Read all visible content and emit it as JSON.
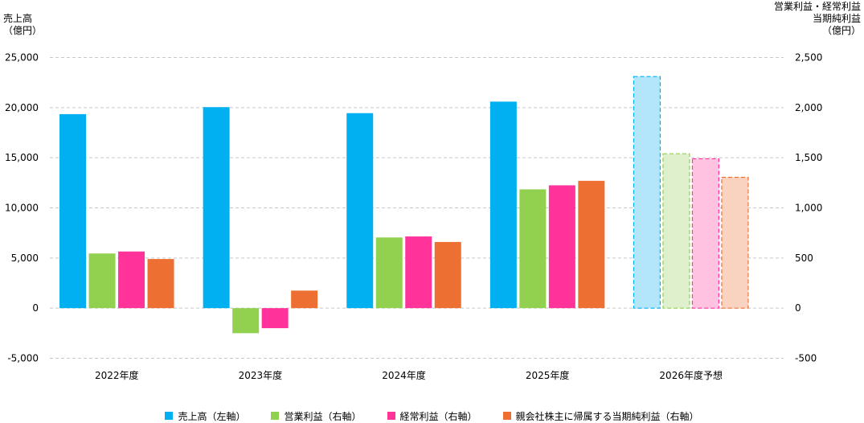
{
  "chart_data": {
    "type": "bar",
    "categories": [
      "2022年度",
      "2023年度",
      "2024年度",
      "2025年度",
      "2026年度予想"
    ],
    "forecast_categories": [
      "2026年度予想"
    ],
    "left_axis": {
      "title": "売上高\n（億円）",
      "ylim": [
        -5000,
        25000
      ],
      "ticks": [
        -5000,
        0,
        5000,
        10000,
        15000,
        20000,
        25000
      ],
      "tick_labels": [
        "-5,000",
        "0",
        "5,000",
        "10,000",
        "15,000",
        "20,000",
        "25,000"
      ]
    },
    "right_axis": {
      "title": "営業利益・経常利益\n当期純利益\n（億円）",
      "ylim": [
        -500,
        2500
      ],
      "ticks": [
        -500,
        0,
        500,
        1000,
        1500,
        2000,
        2500
      ],
      "tick_labels": [
        "-500",
        "0",
        "500",
        "1,000",
        "1,500",
        "2,000",
        "2,500"
      ]
    },
    "grid": true,
    "legend_position": "bottom",
    "series": [
      {
        "name": "売上高（左軸）",
        "axis": "left",
        "color": "#00b0f0",
        "forecast_color": "#b3e6fa",
        "values": [
          19350,
          20050,
          19450,
          20600,
          23100
        ]
      },
      {
        "name": "営業利益（右軸）",
        "axis": "right",
        "color": "#92d050",
        "forecast_color": "#dff0cc",
        "values": [
          545,
          -250,
          705,
          1185,
          1540
        ]
      },
      {
        "name": "経常利益（右軸）",
        "axis": "right",
        "color": "#ff3399",
        "forecast_color": "#ffc2e0",
        "values": [
          565,
          -200,
          715,
          1225,
          1490
        ]
      },
      {
        "name": "親会社株主に帰属する当期純利益（右軸）",
        "axis": "right",
        "color": "#ed7032",
        "forecast_color": "#f9d3c0",
        "values": [
          490,
          175,
          660,
          1270,
          1305
        ]
      }
    ]
  }
}
